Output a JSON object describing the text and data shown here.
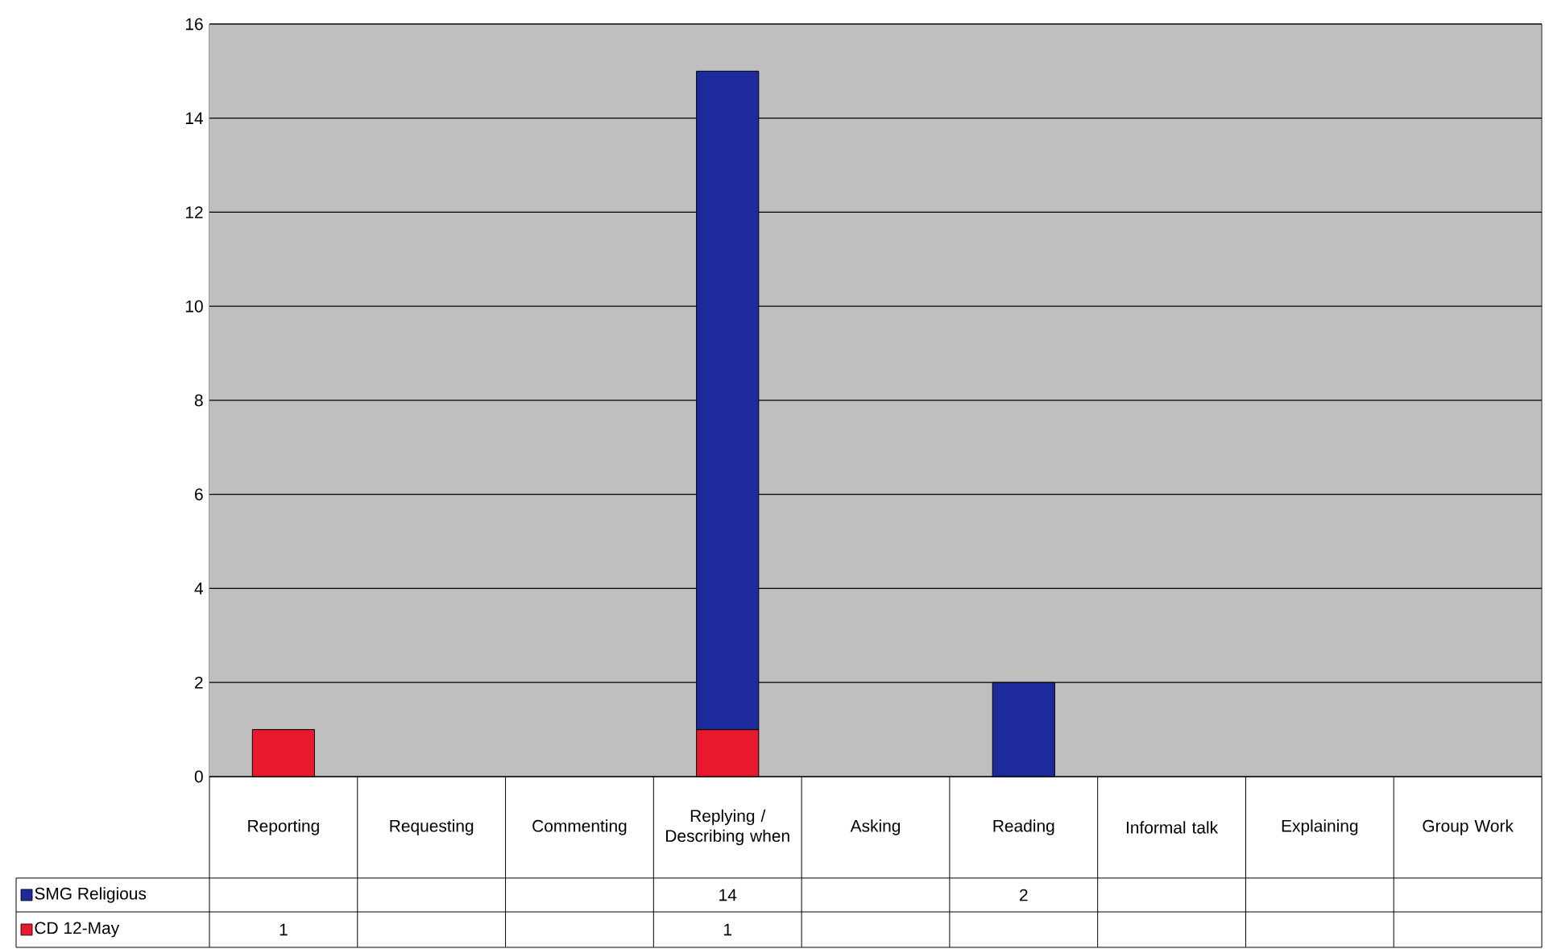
{
  "chart_data": {
    "type": "bar",
    "stacked": true,
    "categories": [
      "Reporting",
      "Requesting",
      "Commenting",
      "Replying / Describing when",
      "Asking",
      "Reading",
      "Informal talk",
      "Explaining",
      "Group Work"
    ],
    "series": [
      {
        "name": "CD 12-May",
        "color": "#e8192c",
        "values": [
          1,
          null,
          null,
          1,
          null,
          null,
          null,
          null,
          null
        ]
      },
      {
        "name": "SMG Religious",
        "color": "#1c2a9c",
        "values": [
          null,
          null,
          null,
          14,
          null,
          2,
          null,
          null,
          null
        ]
      }
    ],
    "ylim": [
      0,
      16
    ],
    "yticks": [
      0,
      2,
      4,
      6,
      8,
      10,
      12,
      14,
      16
    ],
    "grid": "y",
    "data_labels": true,
    "legend": "bottom"
  }
}
